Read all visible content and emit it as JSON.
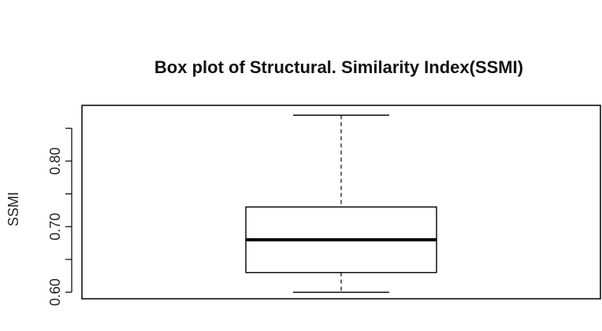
{
  "chart_data": {
    "type": "box",
    "title": "Box plot of Structural. Similarity Index(SSMI)",
    "xlabel": "",
    "ylabel": "SSMI",
    "ylim": [
      0.59,
      0.885
    ],
    "y_ticks": [
      0.6,
      0.65,
      0.7,
      0.75,
      0.8,
      0.85
    ],
    "y_tick_labels": [
      "0.60",
      "",
      "0.70",
      "",
      "0.80",
      ""
    ],
    "grid": false,
    "box": {
      "min": 0.6,
      "q1": 0.63,
      "median": 0.68,
      "q3": 0.73,
      "max": 0.87
    }
  }
}
